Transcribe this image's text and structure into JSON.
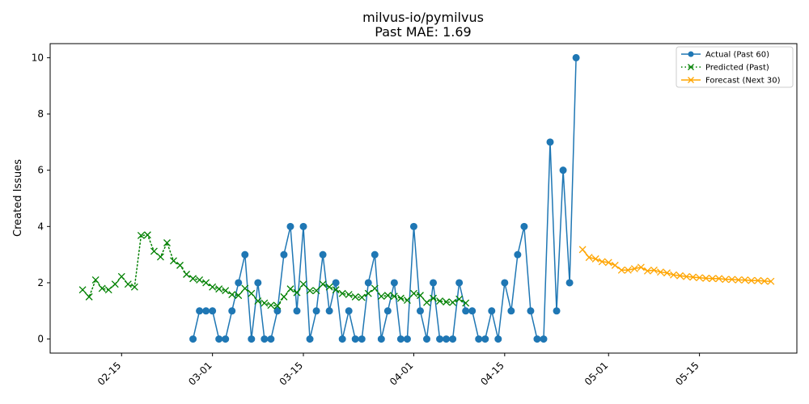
{
  "chart_data": {
    "type": "line",
    "title": "milvus-io/pymilvus",
    "subtitle": "Past MAE: 1.69",
    "xlabel": "",
    "ylabel": "Created Issues",
    "x_ticks": [
      "02-15",
      "03-01",
      "03-15",
      "04-01",
      "04-15",
      "05-01",
      "05-15"
    ],
    "x_tick_dates": [
      "2025-02-15",
      "2025-03-01",
      "2025-03-15",
      "2025-04-01",
      "2025-04-15",
      "2025-05-01",
      "2025-05-15"
    ],
    "xlim": [
      "2025-02-04",
      "2025-05-30"
    ],
    "ylim": [
      -0.5,
      10.5
    ],
    "y_ticks": [
      0,
      2,
      4,
      6,
      8,
      10
    ],
    "grid": false,
    "legend_position": "upper right",
    "series": [
      {
        "name": "Actual (Past 60)",
        "color": "#1f77b4",
        "style": "solid",
        "marker": "circle",
        "x": [
          "2025-02-26",
          "2025-02-27",
          "2025-02-28",
          "2025-03-01",
          "2025-03-02",
          "2025-03-03",
          "2025-03-04",
          "2025-03-05",
          "2025-03-06",
          "2025-03-07",
          "2025-03-08",
          "2025-03-09",
          "2025-03-10",
          "2025-03-11",
          "2025-03-12",
          "2025-03-13",
          "2025-03-14",
          "2025-03-15",
          "2025-03-16",
          "2025-03-17",
          "2025-03-18",
          "2025-03-19",
          "2025-03-20",
          "2025-03-21",
          "2025-03-22",
          "2025-03-23",
          "2025-03-24",
          "2025-03-25",
          "2025-03-26",
          "2025-03-27",
          "2025-03-28",
          "2025-03-29",
          "2025-03-30",
          "2025-03-31",
          "2025-04-01",
          "2025-04-02",
          "2025-04-03",
          "2025-04-04",
          "2025-04-05",
          "2025-04-06",
          "2025-04-07",
          "2025-04-08",
          "2025-04-09",
          "2025-04-10",
          "2025-04-11",
          "2025-04-12",
          "2025-04-13",
          "2025-04-14",
          "2025-04-15",
          "2025-04-16",
          "2025-04-17",
          "2025-04-18",
          "2025-04-19",
          "2025-04-20",
          "2025-04-21",
          "2025-04-22",
          "2025-04-23",
          "2025-04-24",
          "2025-04-25",
          "2025-04-26"
        ],
        "values": [
          0,
          1,
          1,
          1,
          0,
          0,
          1,
          2,
          3,
          0,
          2,
          0,
          0,
          1,
          3,
          4,
          1,
          4,
          0,
          1,
          3,
          1,
          2,
          0,
          1,
          0,
          0,
          2,
          3,
          0,
          1,
          2,
          0,
          0,
          4,
          1,
          0,
          2,
          0,
          0,
          0,
          2,
          1,
          1,
          0,
          0,
          1,
          0,
          2,
          1,
          3,
          4,
          1,
          0,
          0,
          7,
          1,
          6,
          2,
          10
        ]
      },
      {
        "name": "Predicted (Past)",
        "color": "#008000",
        "style": "dotted",
        "marker": "x",
        "x": [
          "2025-02-09",
          "2025-02-10",
          "2025-02-11",
          "2025-02-12",
          "2025-02-13",
          "2025-02-14",
          "2025-02-15",
          "2025-02-16",
          "2025-02-17",
          "2025-02-18",
          "2025-02-19",
          "2025-02-20",
          "2025-02-21",
          "2025-02-22",
          "2025-02-23",
          "2025-02-24",
          "2025-02-25",
          "2025-02-26",
          "2025-02-27",
          "2025-02-28",
          "2025-03-01",
          "2025-03-02",
          "2025-03-03",
          "2025-03-04",
          "2025-03-05",
          "2025-03-06",
          "2025-03-07",
          "2025-03-08",
          "2025-03-09",
          "2025-03-10",
          "2025-03-11",
          "2025-03-12",
          "2025-03-13",
          "2025-03-14",
          "2025-03-15",
          "2025-03-16",
          "2025-03-17",
          "2025-03-18",
          "2025-03-19",
          "2025-03-20",
          "2025-03-21",
          "2025-03-22",
          "2025-03-23",
          "2025-03-24",
          "2025-03-25",
          "2025-03-26",
          "2025-03-27",
          "2025-03-28",
          "2025-03-29",
          "2025-03-30",
          "2025-03-31",
          "2025-04-01",
          "2025-04-02",
          "2025-04-03",
          "2025-04-04",
          "2025-04-05",
          "2025-04-06",
          "2025-04-07",
          "2025-04-08",
          "2025-04-09"
        ],
        "values": [
          1.75,
          1.5,
          2.1,
          1.8,
          1.75,
          1.95,
          2.22,
          1.95,
          1.85,
          3.68,
          3.7,
          3.12,
          2.92,
          3.42,
          2.78,
          2.62,
          2.3,
          2.15,
          2.1,
          2.0,
          1.85,
          1.78,
          1.72,
          1.58,
          1.55,
          1.8,
          1.62,
          1.35,
          1.28,
          1.2,
          1.18,
          1.5,
          1.78,
          1.65,
          1.95,
          1.72,
          1.72,
          1.95,
          1.85,
          1.75,
          1.62,
          1.58,
          1.5,
          1.48,
          1.62,
          1.8,
          1.52,
          1.55,
          1.52,
          1.45,
          1.38,
          1.62,
          1.55,
          1.3,
          1.45,
          1.35,
          1.32,
          1.3,
          1.42,
          1.28
        ]
      },
      {
        "name": "Forecast (Next 30)",
        "color": "#ffa500",
        "style": "solid",
        "marker": "x",
        "x": [
          "2025-04-27",
          "2025-04-28",
          "2025-04-29",
          "2025-04-30",
          "2025-05-01",
          "2025-05-02",
          "2025-05-03",
          "2025-05-04",
          "2025-05-05",
          "2025-05-06",
          "2025-05-07",
          "2025-05-08",
          "2025-05-09",
          "2025-05-10",
          "2025-05-11",
          "2025-05-12",
          "2025-05-13",
          "2025-05-14",
          "2025-05-15",
          "2025-05-16",
          "2025-05-17",
          "2025-05-18",
          "2025-05-19",
          "2025-05-20",
          "2025-05-21",
          "2025-05-22",
          "2025-05-23",
          "2025-05-24",
          "2025-05-25",
          "2025-05-26"
        ],
        "values": [
          3.18,
          2.9,
          2.85,
          2.75,
          2.72,
          2.62,
          2.45,
          2.45,
          2.5,
          2.55,
          2.42,
          2.45,
          2.38,
          2.35,
          2.28,
          2.25,
          2.22,
          2.2,
          2.18,
          2.16,
          2.15,
          2.15,
          2.12,
          2.12,
          2.1,
          2.1,
          2.08,
          2.08,
          2.06,
          2.05
        ]
      }
    ]
  }
}
